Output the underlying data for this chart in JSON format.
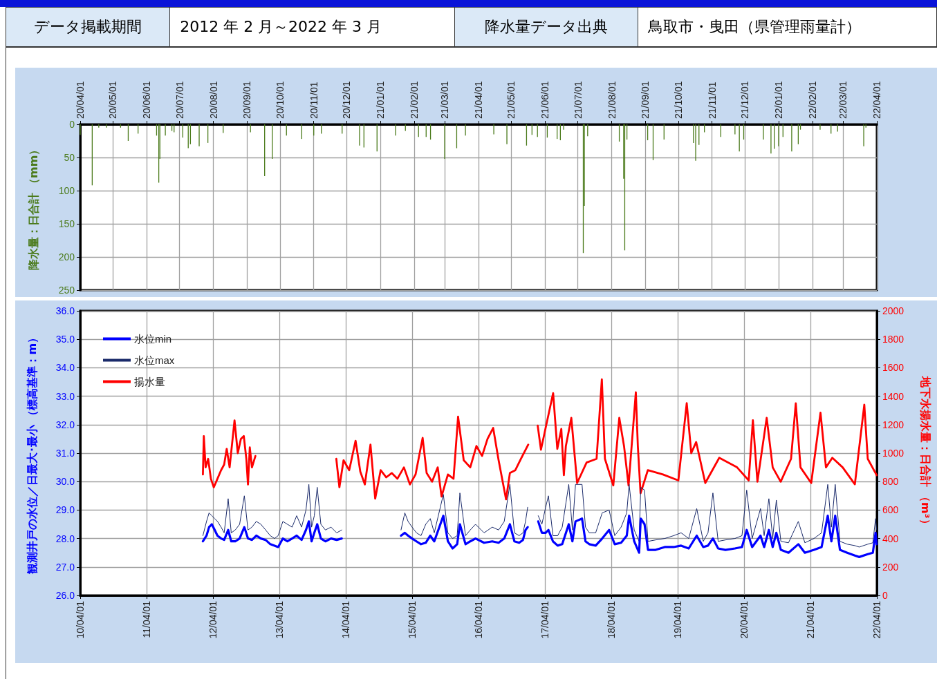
{
  "chart_data": [
    {
      "type": "other",
      "annotations": [
        "データ掲載期間",
        "2012 年 2 月～2022 年 3 月",
        "降水量データ出典",
        "鳥取市・曳田（県管理雨量計）"
      ]
    },
    {
      "type": "bar",
      "ylabel": "降水量：日合計 （mm）",
      "xlim": [
        "2020-04-01",
        "2022-04-01"
      ],
      "xticks": [
        {
          "value": "2020-04-01",
          "label": "20/04/01"
        },
        {
          "value": "2020-05-01",
          "label": "20/05/01"
        },
        {
          "value": "2020-06-01",
          "label": "20/06/01"
        },
        {
          "value": "2020-07-01",
          "label": "20/07/01"
        },
        {
          "value": "2020-08-01",
          "label": "20/08/01"
        },
        {
          "value": "2020-09-01",
          "label": "20/09/01"
        },
        {
          "value": "2020-10-01",
          "label": "20/10/01"
        },
        {
          "value": "2020-11-01",
          "label": "20/11/01"
        },
        {
          "value": "2020-12-01",
          "label": "20/12/01"
        },
        {
          "value": "2021-01-01",
          "label": "21/01/01"
        },
        {
          "value": "2021-02-01",
          "label": "21/02/01"
        },
        {
          "value": "2021-03-01",
          "label": "21/03/01"
        },
        {
          "value": "2021-04-01",
          "label": "21/04/01"
        },
        {
          "value": "2021-05-01",
          "label": "21/05/01"
        },
        {
          "value": "2021-06-01",
          "label": "21/06/01"
        },
        {
          "value": "2021-07-01",
          "label": "21/07/01"
        },
        {
          "value": "2021-08-01",
          "label": "21/08/01"
        },
        {
          "value": "2021-09-01",
          "label": "21/09/01"
        },
        {
          "value": "2021-10-01",
          "label": "21/10/01"
        },
        {
          "value": "2021-11-01",
          "label": "21/11/01"
        },
        {
          "value": "2021-12-01",
          "label": "21/12/01"
        },
        {
          "value": "2022-01-01",
          "label": "22/01/01"
        },
        {
          "value": "2022-02-01",
          "label": "22/02/01"
        },
        {
          "value": "2022-03-01",
          "label": "22/03/01"
        },
        {
          "value": "2022-04-01",
          "label": "22/04/01"
        }
      ],
      "ylim": [
        250,
        0
      ],
      "yticks": [
        0,
        50,
        100,
        150,
        200,
        250
      ],
      "grid": true,
      "legend": false,
      "series": [
        {
          "color": "#4a7a1a",
          "x": [
            "2020-04-01",
            "2020-04-12",
            "2020-04-18",
            "2020-04-25",
            "2020-05-08",
            "2020-05-15",
            "2020-05-24",
            "2020-06-10",
            "2020-06-12",
            "2020-06-13",
            "2020-06-18",
            "2020-06-24",
            "2020-06-26",
            "2020-07-04",
            "2020-07-09",
            "2020-07-11",
            "2020-07-19",
            "2020-07-27",
            "2020-08-10",
            "2020-09-04",
            "2020-09-17",
            "2020-09-24",
            "2020-10-07",
            "2020-10-21",
            "2020-11-01",
            "2020-11-08",
            "2020-11-27",
            "2020-12-13",
            "2020-12-17",
            "2020-12-29",
            "2021-01-15",
            "2021-01-24",
            "2021-02-05",
            "2021-02-12",
            "2021-02-16",
            "2021-03-01",
            "2021-03-12",
            "2021-03-20",
            "2021-04-15",
            "2021-04-27",
            "2021-05-15",
            "2021-05-20",
            "2021-05-25",
            "2021-06-03",
            "2021-06-12",
            "2021-06-15",
            "2021-06-18",
            "2021-07-06",
            "2021-07-07",
            "2021-07-10",
            "2021-08-08",
            "2021-08-12",
            "2021-08-13",
            "2021-08-15",
            "2021-09-03",
            "2021-09-08",
            "2021-09-18",
            "2021-10-15",
            "2021-10-17",
            "2021-10-20",
            "2021-10-25",
            "2021-11-09",
            "2021-11-22",
            "2021-11-26",
            "2021-11-30",
            "2021-12-18",
            "2021-12-25",
            "2021-12-28",
            "2022-01-01",
            "2022-01-05",
            "2022-01-13",
            "2022-01-19",
            "2022-01-21",
            "2022-02-08",
            "2022-02-18",
            "2022-02-24",
            "2022-03-20",
            "2022-03-22"
          ],
          "values": [
            16,
            92,
            5,
            5,
            5,
            25,
            14,
            17,
            88,
            52,
            17,
            10,
            12,
            20,
            36,
            30,
            33,
            28,
            13,
            12,
            78,
            52,
            17,
            22,
            17,
            14,
            14,
            32,
            35,
            41,
            17,
            10,
            19,
            19,
            23,
            52,
            36,
            17,
            15,
            30,
            32,
            16,
            19,
            20,
            22,
            24,
            8,
            194,
            123,
            18,
            26,
            82,
            190,
            23,
            24,
            54,
            23,
            28,
            55,
            31,
            12,
            19,
            15,
            41,
            23,
            23,
            44,
            37,
            33,
            19,
            41,
            30,
            8,
            8,
            14,
            11,
            33,
            5
          ]
        }
      ]
    },
    {
      "type": "line",
      "ylabel": "観測井戸の水位／日最大･最小 （標高基準：m）",
      "y2label": "地下水揚水量：日合計 （m³）",
      "xlim": [
        "2010-04-01",
        "2022-04-01"
      ],
      "xticks": [
        {
          "value": "2010-04-01",
          "label": "10/04/01"
        },
        {
          "value": "2011-04-01",
          "label": "11/04/01"
        },
        {
          "value": "2012-04-01",
          "label": "12/04/01"
        },
        {
          "value": "2013-04-01",
          "label": "13/04/01"
        },
        {
          "value": "2014-04-01",
          "label": "14/04/01"
        },
        {
          "value": "2015-04-01",
          "label": "15/04/01"
        },
        {
          "value": "2016-04-01",
          "label": "16/04/01"
        },
        {
          "value": "2017-04-01",
          "label": "17/04/01"
        },
        {
          "value": "2018-04-01",
          "label": "18/04/01"
        },
        {
          "value": "2019-04-01",
          "label": "19/04/01"
        },
        {
          "value": "2020-04-01",
          "label": "20/04/01"
        },
        {
          "value": "2021-04-01",
          "label": "21/04/01"
        },
        {
          "value": "2022-04-01",
          "label": "22/04/01"
        }
      ],
      "ylim": [
        26,
        36
      ],
      "yticks": [
        {
          "value": 26,
          "label": "26.0"
        },
        {
          "value": 27,
          "label": "27.0"
        },
        {
          "value": 28,
          "label": "28.0"
        },
        {
          "value": 29,
          "label": "29.0"
        },
        {
          "value": 30,
          "label": "30.0"
        },
        {
          "value": 31,
          "label": "31.0"
        },
        {
          "value": 32,
          "label": "32.0"
        },
        {
          "value": 33,
          "label": "33.0"
        },
        {
          "value": 34,
          "label": "34.0"
        },
        {
          "value": 35,
          "label": "35.0"
        },
        {
          "value": 36,
          "label": "36.0"
        }
      ],
      "y2lim": [
        0,
        2000
      ],
      "y2ticks": [
        0,
        200,
        400,
        600,
        800,
        1000,
        1200,
        1400,
        1600,
        1800,
        2000
      ],
      "grid": true,
      "legend": "top left",
      "marker": "none",
      "line_style": "solid",
      "series": [
        {
          "name": "水位min",
          "color": "#0000ff",
          "x": [
            "2012-02-05",
            "2012-02-25",
            "2012-03-10",
            "2012-03-25",
            "2012-04-10",
            "2012-04-25",
            "2012-05-15",
            "2012-06-01",
            "2012-06-23",
            "2012-07-10",
            "2012-08-01",
            "2012-08-25",
            "2012-09-20",
            "2012-10-10",
            "2012-11-01",
            "2012-11-25",
            "2012-12-20",
            "2013-01-15",
            "2013-02-10",
            "2013-03-05",
            "2013-03-25",
            "2013-04-20",
            "2013-05-15",
            "2013-06-10",
            "2013-07-05",
            "2013-08-01",
            "2013-08-25",
            "2013-09-10",
            "2013-09-25",
            "2013-10-10",
            "2013-10-26",
            "2013-11-15",
            "2013-12-10",
            "2014-01-10",
            "2014-02-10",
            "2014-03-10",
            "2014-06-01",
            "2015-01-30",
            "2015-02-20",
            "2015-03-10",
            "2015-04-01",
            "2015-04-25",
            "2015-05-20",
            "2015-06-15",
            "2015-07-10",
            "2015-08-01",
            "2015-09-20",
            "2015-10-15",
            "2015-11-10",
            "2015-12-05",
            "2015-12-20",
            "2016-01-20",
            "2016-02-15",
            "2016-03-15",
            "2016-05-01",
            "2016-06-15",
            "2016-07-20",
            "2016-08-20",
            "2016-09-20",
            "2016-10-15",
            "2016-11-10",
            "2016-12-01",
            "2016-12-15",
            "2016-12-27",
            "2017-01-20",
            "2017-02-23",
            "2017-03-15",
            "2017-04-05",
            "2017-04-20",
            "2017-05-15",
            "2017-06-10",
            "2017-07-05",
            "2017-08-10",
            "2017-08-30",
            "2017-09-16",
            "2017-10-22",
            "2017-11-10",
            "2017-12-01",
            "2018-01-05",
            "2018-02-10",
            "2018-03-20",
            "2018-04-20",
            "2018-05-25",
            "2018-06-25",
            "2018-07-08",
            "2018-08-05",
            "2018-09-01",
            "2018-09-10",
            "2018-10-01",
            "2018-10-20",
            "2018-12-01",
            "2019-01-20",
            "2019-03-10",
            "2019-04-20",
            "2019-06-01",
            "2019-07-15",
            "2019-08-20",
            "2019-09-15",
            "2019-10-12",
            "2019-11-10",
            "2019-12-20",
            "2020-02-10",
            "2020-03-20",
            "2020-04-15",
            "2020-05-15",
            "2020-06-30",
            "2020-07-20",
            "2020-08-15",
            "2020-09-05",
            "2020-09-25",
            "2020-10-20",
            "2020-12-01",
            "2021-01-24",
            "2021-03-01",
            "2021-04-20",
            "2021-06-01",
            "2021-07-05",
            "2021-07-25",
            "2021-08-15",
            "2021-09-10",
            "2021-10-20",
            "2021-12-01",
            "2021-12-25",
            "2022-02-10",
            "2022-03-10",
            "2022-03-25",
            "2022-03-31"
          ],
          "values": [
            27.9,
            28.1,
            28.4,
            28.5,
            28.3,
            28.1,
            28.0,
            27.95,
            28.3,
            27.9,
            27.9,
            28.0,
            28.4,
            28.0,
            27.95,
            28.1,
            28.0,
            27.95,
            27.8,
            27.75,
            27.7,
            28.0,
            27.9,
            28.0,
            28.1,
            27.95,
            28.3,
            28.6,
            27.9,
            28.2,
            28.5,
            28.0,
            27.9,
            28.0,
            27.95,
            28.0,
            null,
            28.1,
            28.2,
            28.1,
            28.0,
            27.9,
            27.8,
            27.85,
            28.1,
            27.9,
            28.8,
            27.9,
            27.65,
            27.8,
            28.5,
            27.8,
            27.9,
            28.0,
            27.85,
            27.9,
            27.85,
            28.0,
            28.5,
            27.9,
            27.85,
            27.95,
            28.3,
            28.4,
            null,
            28.6,
            28.2,
            28.2,
            28.3,
            27.9,
            27.75,
            27.8,
            28.5,
            27.9,
            28.6,
            28.7,
            27.9,
            27.8,
            27.75,
            28.0,
            28.3,
            27.8,
            27.85,
            28.1,
            28.8,
            27.9,
            27.5,
            28.7,
            28.5,
            27.6,
            27.6,
            27.7,
            27.7,
            27.75,
            27.65,
            28.1,
            27.7,
            27.75,
            28.0,
            27.65,
            27.6,
            27.65,
            27.7,
            28.3,
            27.7,
            28.1,
            27.7,
            28.3,
            27.7,
            28.2,
            27.6,
            27.5,
            27.8,
            27.5,
            27.6,
            27.7,
            28.8,
            27.9,
            28.8,
            27.6,
            27.5,
            27.4,
            27.35,
            27.45,
            27.5,
            28.2,
            27.8
          ]
        },
        {
          "name": "水位max",
          "color": "#1a2a6a",
          "x": [
            "2012-02-05",
            "2012-02-25",
            "2012-03-10",
            "2012-03-25",
            "2012-04-10",
            "2012-04-25",
            "2012-05-15",
            "2012-06-01",
            "2012-06-23",
            "2012-07-10",
            "2012-08-01",
            "2012-08-25",
            "2012-09-20",
            "2012-10-10",
            "2012-11-01",
            "2012-11-25",
            "2012-12-20",
            "2013-01-15",
            "2013-02-10",
            "2013-03-05",
            "2013-03-25",
            "2013-04-20",
            "2013-05-15",
            "2013-06-10",
            "2013-07-05",
            "2013-08-01",
            "2013-08-25",
            "2013-09-10",
            "2013-09-25",
            "2013-10-10",
            "2013-10-26",
            "2013-11-15",
            "2013-12-10",
            "2014-01-10",
            "2014-02-10",
            "2014-03-10",
            "2014-06-01",
            "2015-01-30",
            "2015-02-20",
            "2015-03-10",
            "2015-04-01",
            "2015-04-25",
            "2015-05-20",
            "2015-06-15",
            "2015-07-10",
            "2015-08-01",
            "2015-09-20",
            "2015-10-15",
            "2015-11-10",
            "2015-12-05",
            "2015-12-20",
            "2016-01-20",
            "2016-02-15",
            "2016-03-15",
            "2016-05-01",
            "2016-06-15",
            "2016-07-20",
            "2016-08-20",
            "2016-09-20",
            "2016-10-15",
            "2016-11-10",
            "2016-12-01",
            "2016-12-15",
            "2016-12-27",
            "2017-01-20",
            "2017-02-23",
            "2017-03-15",
            "2017-04-05",
            "2017-04-20",
            "2017-05-15",
            "2017-06-10",
            "2017-07-05",
            "2017-08-10",
            "2017-08-30",
            "2017-09-16",
            "2017-10-22",
            "2017-11-10",
            "2017-12-01",
            "2018-01-05",
            "2018-02-10",
            "2018-03-20",
            "2018-04-20",
            "2018-05-25",
            "2018-06-25",
            "2018-07-08",
            "2018-08-05",
            "2018-09-01",
            "2018-09-10",
            "2018-10-01",
            "2018-10-20",
            "2018-12-01",
            "2019-01-20",
            "2019-03-10",
            "2019-04-20",
            "2019-06-01",
            "2019-07-15",
            "2019-08-20",
            "2019-09-15",
            "2019-10-12",
            "2019-11-10",
            "2019-12-20",
            "2020-02-10",
            "2020-03-20",
            "2020-04-15",
            "2020-05-15",
            "2020-06-30",
            "2020-07-20",
            "2020-08-15",
            "2020-09-05",
            "2020-09-25",
            "2020-10-20",
            "2020-12-01",
            "2021-01-24",
            "2021-03-01",
            "2021-04-20",
            "2021-06-01",
            "2021-07-05",
            "2021-07-25",
            "2021-08-15",
            "2021-09-10",
            "2021-10-20",
            "2021-12-01",
            "2021-12-25",
            "2022-02-10",
            "2022-03-10",
            "2022-03-25",
            "2022-03-31"
          ],
          "values": [
            28.1,
            28.6,
            28.9,
            28.8,
            28.7,
            28.6,
            28.4,
            28.2,
            29.4,
            28.2,
            28.3,
            28.5,
            29.5,
            28.3,
            28.4,
            28.6,
            28.5,
            28.3,
            28.1,
            28.0,
            28.1,
            28.6,
            28.5,
            28.4,
            28.8,
            28.4,
            29.0,
            29.9,
            28.4,
            28.8,
            29.8,
            28.5,
            28.3,
            28.4,
            28.2,
            28.3,
            null,
            28.3,
            28.9,
            28.6,
            28.4,
            28.2,
            28.1,
            28.5,
            28.7,
            28.2,
            29.55,
            28.2,
            28.0,
            28.1,
            29.6,
            28.1,
            28.3,
            28.5,
            28.2,
            28.4,
            28.3,
            28.6,
            29.9,
            28.2,
            28.1,
            28.2,
            28.6,
            29.1,
            null,
            28.8,
            28.5,
            29.1,
            29.5,
            28.1,
            28.1,
            28.4,
            29.9,
            28.3,
            29.9,
            29.9,
            28.4,
            28.2,
            28.2,
            28.9,
            29.0,
            28.1,
            28.4,
            28.9,
            29.9,
            28.3,
            27.9,
            29.8,
            29.7,
            27.9,
            27.95,
            28.0,
            28.1,
            28.2,
            28.0,
            29.05,
            27.9,
            28.2,
            29.6,
            27.9,
            27.95,
            28.0,
            28.1,
            29.7,
            28.0,
            29.05,
            28.1,
            29.4,
            28.0,
            29.35,
            27.9,
            27.85,
            28.6,
            27.85,
            28.0,
            28.2,
            29.9,
            28.4,
            29.9,
            27.9,
            27.8,
            27.75,
            27.7,
            27.8,
            27.85,
            28.7,
            28.3
          ]
        },
        {
          "name": "揚水量",
          "color": "#ff0000",
          "axis": "y2",
          "x": [
            "2012-02-05",
            "2012-02-10",
            "2012-02-20",
            "2012-03-05",
            "2012-03-20",
            "2012-04-05",
            "2012-04-25",
            "2012-05-15",
            "2012-06-01",
            "2012-06-15",
            "2012-07-01",
            "2012-07-28",
            "2012-08-15",
            "2012-09-01",
            "2012-09-17",
            "2012-10-01",
            "2012-10-10",
            "2012-10-20",
            "2012-11-01",
            "2012-11-20",
            "2013-06-01",
            "2014-02-08",
            "2014-02-25",
            "2014-03-20",
            "2014-04-20",
            "2014-05-25",
            "2014-06-20",
            "2014-07-15",
            "2014-08-15",
            "2014-09-10",
            "2014-10-10",
            "2014-11-10",
            "2014-12-10",
            "2015-01-10",
            "2015-02-15",
            "2015-03-20",
            "2015-04-20",
            "2015-05-29",
            "2015-06-20",
            "2015-07-20",
            "2015-08-20",
            "2015-09-10",
            "2015-10-15",
            "2015-11-15",
            "2015-12-10",
            "2016-01-10",
            "2016-02-15",
            "2016-03-20",
            "2016-04-20",
            "2016-05-20",
            "2016-06-20",
            "2016-07-20",
            "2016-08-30",
            "2016-09-20",
            "2016-10-20",
            "2016-11-20",
            "2016-12-30",
            "2017-01-20",
            "2017-02-20",
            "2017-03-10",
            "2017-05-16",
            "2017-06-08",
            "2017-06-30",
            "2017-07-14",
            "2017-07-25",
            "2017-08-24",
            "2017-09-25",
            "2017-11-16",
            "2018-01-10",
            "2018-02-08",
            "2018-02-25",
            "2018-04-12",
            "2018-05-15",
            "2018-06-10",
            "2018-07-05",
            "2018-08-14",
            "2018-08-25",
            "2018-09-09",
            "2018-10-19",
            "2019-01-10",
            "2019-04-05",
            "2019-05-21",
            "2019-06-15",
            "2019-07-12",
            "2019-08-31",
            "2019-11-16",
            "2020-02-22",
            "2020-04-26",
            "2020-05-19",
            "2020-06-13",
            "2020-08-03",
            "2020-09-05",
            "2020-10-19",
            "2020-12-15",
            "2021-01-10",
            "2021-02-05",
            "2021-04-05",
            "2021-05-26",
            "2021-06-25",
            "2021-07-30",
            "2021-09-25",
            "2021-12-01",
            "2022-01-22",
            "2022-02-10",
            "2022-03-31"
          ],
          "values": [
            850,
            1120,
            900,
            960,
            820,
            760,
            820,
            880,
            920,
            1030,
            900,
            1230,
            1000,
            1100,
            1120,
            960,
            780,
            1040,
            900,
            980,
            null,
            960,
            760,
            950,
            880,
            1087,
            870,
            780,
            1060,
            680,
            880,
            830,
            860,
            820,
            900,
            780,
            850,
            1107,
            860,
            800,
            900,
            695,
            850,
            820,
            1256,
            950,
            900,
            1050,
            980,
            1100,
            1177,
            950,
            675,
            860,
            880,
            960,
            1060,
            null,
            1194,
            1024,
            1422,
            1030,
            1170,
            845,
            1050,
            1248,
            790,
            934,
            960,
            1519,
            960,
            773,
            1248,
            1050,
            773,
            1428,
            1050,
            718,
            880,
            850,
            808,
            1351,
            1000,
            1078,
            790,
            967,
            900,
            808,
            1231,
            799,
            1248,
            900,
            799,
            960,
            1350,
            900,
            790,
            1284,
            900,
            967,
            900,
            781,
            1340,
            960,
            845
          ]
        }
      ]
    }
  ]
}
